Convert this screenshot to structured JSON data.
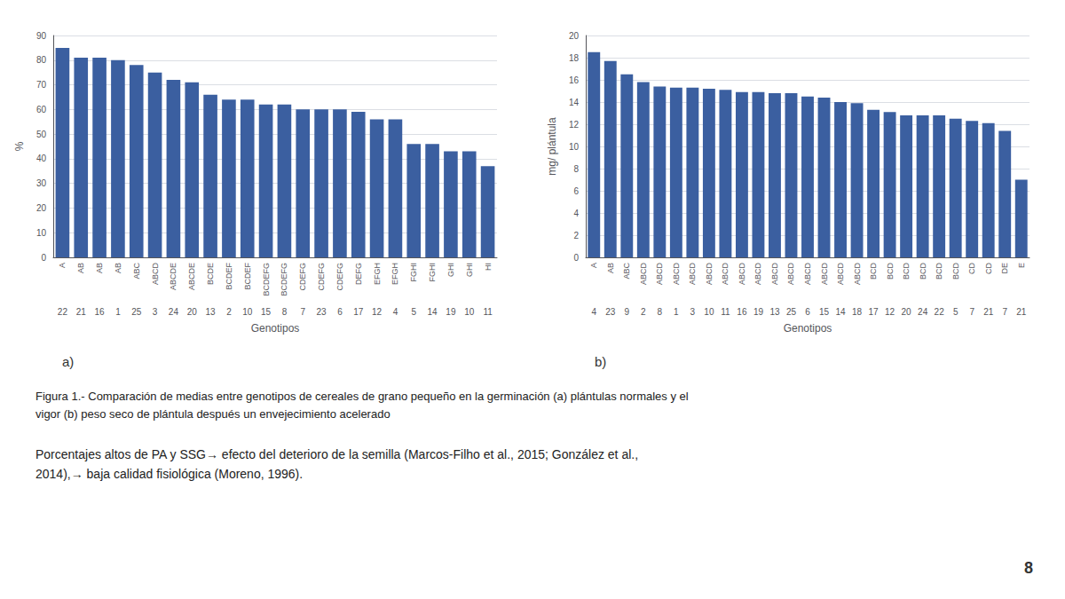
{
  "chart_data": [
    {
      "type": "bar",
      "categories": [
        "22",
        "21",
        "16",
        "1",
        "25",
        "3",
        "24",
        "20",
        "13",
        "2",
        "10",
        "15",
        "8",
        "7",
        "23",
        "6",
        "17",
        "12",
        "4",
        "5",
        "14",
        "19",
        "10",
        "11"
      ],
      "group_labels": [
        "A",
        "AB",
        "AB",
        "AB",
        "ABC",
        "ABCD",
        "ABCDE",
        "ABCDE",
        "BCDE",
        "BCDEF",
        "BCDEF",
        "BCDEFG",
        "BCDEFG",
        "CDEFG",
        "CDEFG",
        "CDEFG",
        "DEFG",
        "EFGH",
        "EFGH",
        "FGHI",
        "FGHI",
        "GHI",
        "GHI",
        "HI"
      ],
      "values": [
        85,
        81,
        81,
        80,
        78,
        75,
        72,
        71,
        66,
        64,
        64,
        62,
        62,
        60,
        60,
        60,
        59,
        56,
        56,
        46,
        46,
        43,
        43,
        37
      ],
      "color": "#3B5FA0",
      "ylabel": "%",
      "xlabel": "Genotipos",
      "ylim": [
        0,
        90
      ],
      "yticks": [
        0,
        10,
        20,
        30,
        40,
        50,
        60,
        70,
        80,
        90
      ],
      "grid": true,
      "annotations": [
        "a)"
      ]
    },
    {
      "type": "bar",
      "categories": [
        "4",
        "23",
        "9",
        "2",
        "8",
        "1",
        "3",
        "10",
        "11",
        "16",
        "19",
        "13",
        "25",
        "6",
        "15",
        "14",
        "18",
        "17",
        "12",
        "20",
        "24",
        "22",
        "5",
        "7",
        "21",
        "7",
        "21"
      ],
      "group_labels": [
        "A",
        "AB",
        "ABC",
        "ABCD",
        "ABCD",
        "ABCD",
        "ABCD",
        "ABCD",
        "ABCD",
        "ABCD",
        "ABCD",
        "ABCD",
        "ABCD",
        "ABCD",
        "ABCD",
        "ABCD",
        "ABCD",
        "BCD",
        "BCD",
        "BCD",
        "BCD",
        "BCD",
        "BCD",
        "CD",
        "CD",
        "DE",
        "E"
      ],
      "values": [
        18.5,
        17.7,
        16.5,
        15.8,
        15.4,
        15.3,
        15.3,
        15.2,
        15.1,
        14.9,
        14.9,
        14.8,
        14.8,
        14.5,
        14.4,
        14.0,
        13.9,
        13.3,
        13.1,
        12.8,
        12.8,
        12.8,
        12.5,
        12.3,
        12.1,
        11.4,
        7.0
      ],
      "color": "#3B5FA0",
      "ylabel": "mg/ plántula",
      "xlabel": "Genotipos",
      "ylim": [
        0,
        20
      ],
      "yticks": [
        0,
        2,
        4,
        6,
        8,
        10,
        12,
        14,
        16,
        18,
        20
      ],
      "grid": true,
      "annotations": [
        "b)"
      ]
    }
  ],
  "annotations": [
    "Figura 1.- Comparación de medias entre genotipos de cereales de grano pequeño en la germinación (a) plántulas normales y el",
    "vigor (b) peso seco de plántula después un envejecimiento acelerado",
    "Porcentajes altos de PA y SSG→ efecto del deterioro de la semilla (Marcos-Filho et al., 2015; González et al.,",
    "2014),→ baja calidad fisiológica (Moreno, 1996).",
    "8"
  ]
}
